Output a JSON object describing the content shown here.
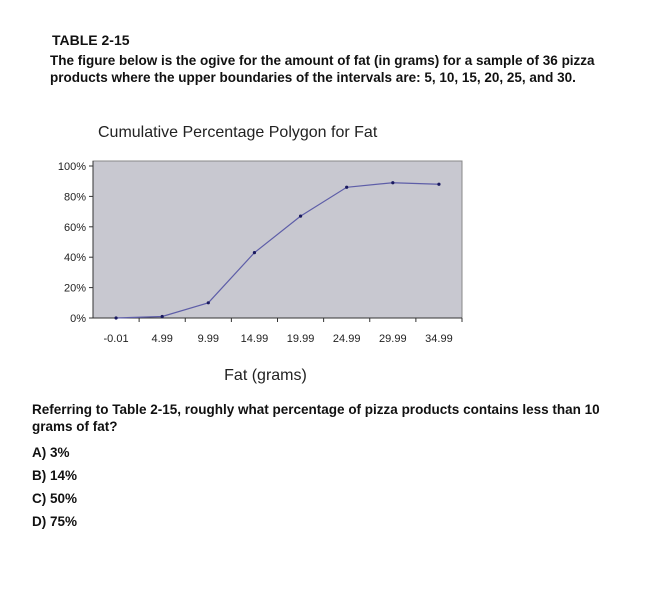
{
  "table_title": "TABLE 2-15",
  "intro": "The figure below is the ogive for the amount of fat (in grams) for a sample of 36 pizza products where the upper boundaries of the intervals are: 5, 10, 15, 20, 25, and 30.",
  "question": "Referring to Table 2-15, roughly what percentage of pizza products contains less than 10 grams of fat?",
  "choices": [
    {
      "letter": "A)",
      "text": "3%"
    },
    {
      "letter": "B)",
      "text": "14%"
    },
    {
      "letter": "C)",
      "text": "50%"
    },
    {
      "letter": "D)",
      "text": "75%"
    }
  ],
  "chart_data": {
    "type": "line",
    "title": "Cumulative Percentage Polygon for Fat",
    "xlabel": "Fat (grams)",
    "ylabel": "",
    "categories": [
      "-0.01",
      "4.99",
      "9.99",
      "14.99",
      "19.99",
      "24.99",
      "29.99",
      "34.99"
    ],
    "values": [
      0,
      1,
      10,
      43,
      67,
      86,
      89,
      88
    ],
    "ylim": [
      0,
      100
    ],
    "yticks": [
      "0%",
      "20%",
      "40%",
      "60%",
      "80%",
      "100%"
    ],
    "plot_area_color": "#c8c8d0",
    "line_color": "#5e5ea8",
    "grid": false,
    "legend": "none"
  }
}
